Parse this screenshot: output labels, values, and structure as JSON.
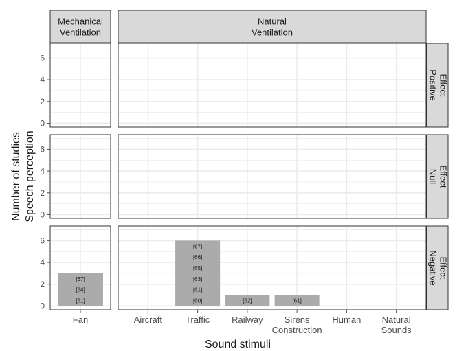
{
  "chart_data": {
    "type": "bar",
    "facet_type": "grid",
    "x_axis_label": "Sound stimuli",
    "y_axis_label_lines": [
      "Number of studies",
      "Speech perception"
    ],
    "columns": [
      {
        "label_lines": [
          "Mechanical",
          "Ventilation"
        ],
        "categories": [
          {
            "label_lines": [
              "Fan"
            ]
          }
        ]
      },
      {
        "label_lines": [
          "Natural",
          "Ventilation"
        ],
        "categories": [
          {
            "label_lines": [
              "Aircraft"
            ]
          },
          {
            "label_lines": [
              "Traffic"
            ]
          },
          {
            "label_lines": [
              "Railway"
            ]
          },
          {
            "label_lines": [
              "Sirens",
              "Construction"
            ]
          },
          {
            "label_lines": [
              "Human"
            ]
          },
          {
            "label_lines": [
              "Natural",
              "Sounds"
            ]
          }
        ]
      }
    ],
    "rows": [
      {
        "label_lines": [
          "Positive",
          "Effect"
        ]
      },
      {
        "label_lines": [
          "Null",
          "Effect"
        ]
      },
      {
        "label_lines": [
          "Negative",
          "Effect"
        ]
      }
    ],
    "y_range": [
      -0.35,
      7.35
    ],
    "y_ticks": [
      0,
      2,
      4,
      6
    ],
    "y_tick_labels": [
      "0",
      "2",
      "4",
      "6"
    ],
    "bars": [
      {
        "row": 2,
        "col": 0,
        "cat": 0,
        "value": 3,
        "refs": [
          "[61]",
          "[64]",
          "[67]"
        ]
      },
      {
        "row": 2,
        "col": 1,
        "cat": 1,
        "value": 6,
        "refs": [
          "[60]",
          "[61]",
          "[63]",
          "[65]",
          "[66]",
          "[67]"
        ]
      },
      {
        "row": 2,
        "col": 1,
        "cat": 2,
        "value": 1,
        "refs": [
          "[62]"
        ]
      },
      {
        "row": 2,
        "col": 1,
        "cat": 3,
        "value": 1,
        "refs": [
          "[61]"
        ]
      }
    ],
    "grid": true,
    "colors": {
      "bar": "#ababab",
      "strip": "#d9d9d9",
      "grid": "#ebebeb",
      "border": "#333333",
      "text": "#1a1a1a",
      "tick": "#4d4d4d"
    }
  }
}
